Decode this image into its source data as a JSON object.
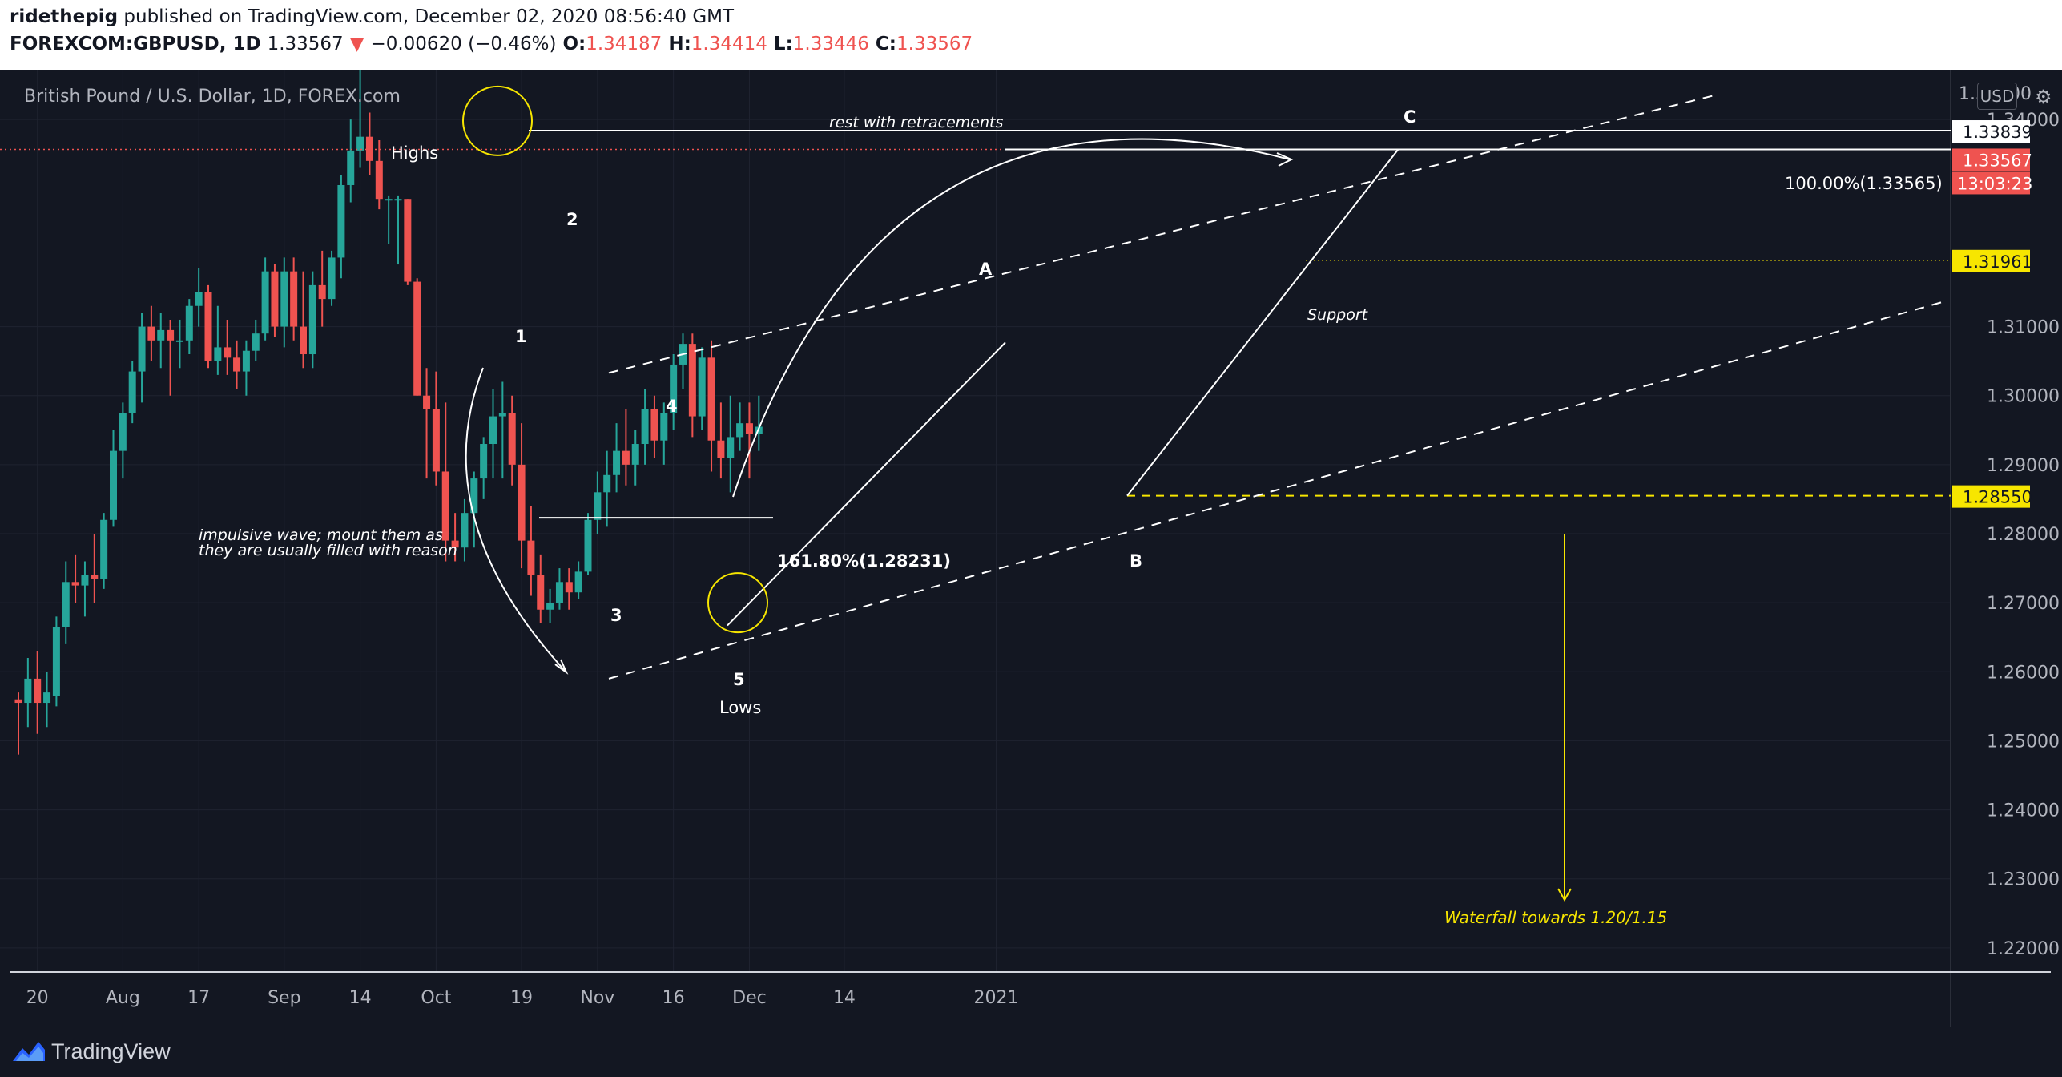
{
  "header": {
    "author": "ridethepig",
    "published_text": "published on TradingView.com, December 02, 2020 08:56:40 GMT",
    "symbol": "FOREXCOM:GBPUSD, 1D",
    "price": "1.33567",
    "change": "−0.00620 (−0.46%)",
    "o_label": "O:",
    "o_value": "1.34187",
    "h_label": "H:",
    "h_value": "1.34414",
    "l_label": "L:",
    "l_value": "1.33446",
    "c_label": "C:",
    "c_value": "1.33567"
  },
  "footer": {
    "brand": "TradingView"
  },
  "colors": {
    "up": "#26a69a",
    "down": "#ef5350",
    "background": "#131722",
    "accent_yellow": "#f7e600"
  },
  "chart_data": {
    "type": "candlestick",
    "title": "British Pound / U.S. Dollar, 1D, FOREX.com",
    "currency": "USD",
    "ylim": [
      1.2165,
      1.3435
    ],
    "y_ticks": [
      "1.22000",
      "1.23000",
      "1.24000",
      "1.25000",
      "1.26000",
      "1.27000",
      "1.28000",
      "1.29000",
      "1.30000",
      "1.31000",
      "1.34000"
    ],
    "x_ticks": [
      "20",
      "Aug",
      "17",
      "Sep",
      "14",
      "Oct",
      "19",
      "Nov",
      "16",
      "Dec",
      "14",
      "2021"
    ],
    "x_tick_index": [
      2,
      11,
      19,
      28,
      36,
      44,
      53,
      61,
      69,
      77,
      87,
      103
    ],
    "candles": [
      {
        "o": 1.256,
        "h": 1.257,
        "l": 1.248,
        "c": 1.2555
      },
      {
        "o": 1.2555,
        "h": 1.262,
        "l": 1.252,
        "c": 1.259
      },
      {
        "o": 1.259,
        "h": 1.263,
        "l": 1.251,
        "c": 1.2555
      },
      {
        "o": 1.2555,
        "h": 1.26,
        "l": 1.252,
        "c": 1.257
      },
      {
        "o": 1.2565,
        "h": 1.268,
        "l": 1.255,
        "c": 1.2665
      },
      {
        "o": 1.2665,
        "h": 1.276,
        "l": 1.264,
        "c": 1.273
      },
      {
        "o": 1.273,
        "h": 1.277,
        "l": 1.27,
        "c": 1.2725
      },
      {
        "o": 1.2725,
        "h": 1.276,
        "l": 1.268,
        "c": 1.274
      },
      {
        "o": 1.274,
        "h": 1.28,
        "l": 1.27,
        "c": 1.2735
      },
      {
        "o": 1.2735,
        "h": 1.283,
        "l": 1.272,
        "c": 1.282
      },
      {
        "o": 1.282,
        "h": 1.295,
        "l": 1.281,
        "c": 1.292
      },
      {
        "o": 1.292,
        "h": 1.299,
        "l": 1.288,
        "c": 1.2975
      },
      {
        "o": 1.2975,
        "h": 1.305,
        "l": 1.296,
        "c": 1.3035
      },
      {
        "o": 1.3035,
        "h": 1.312,
        "l": 1.299,
        "c": 1.31
      },
      {
        "o": 1.31,
        "h": 1.313,
        "l": 1.305,
        "c": 1.308
      },
      {
        "o": 1.308,
        "h": 1.312,
        "l": 1.304,
        "c": 1.3095
      },
      {
        "o": 1.3095,
        "h": 1.311,
        "l": 1.3,
        "c": 1.308
      },
      {
        "o": 1.308,
        "h": 1.311,
        "l": 1.304,
        "c": 1.308
      },
      {
        "o": 1.308,
        "h": 1.314,
        "l": 1.306,
        "c": 1.313
      },
      {
        "o": 1.313,
        "h": 1.3185,
        "l": 1.31,
        "c": 1.315
      },
      {
        "o": 1.315,
        "h": 1.316,
        "l": 1.304,
        "c": 1.305
      },
      {
        "o": 1.305,
        "h": 1.313,
        "l": 1.303,
        "c": 1.307
      },
      {
        "o": 1.307,
        "h": 1.311,
        "l": 1.303,
        "c": 1.3055
      },
      {
        "o": 1.3055,
        "h": 1.308,
        "l": 1.301,
        "c": 1.3035
      },
      {
        "o": 1.3035,
        "h": 1.308,
        "l": 1.3,
        "c": 1.3065
      },
      {
        "o": 1.3065,
        "h": 1.311,
        "l": 1.305,
        "c": 1.309
      },
      {
        "o": 1.309,
        "h": 1.32,
        "l": 1.308,
        "c": 1.318
      },
      {
        "o": 1.318,
        "h": 1.319,
        "l": 1.3085,
        "c": 1.31
      },
      {
        "o": 1.31,
        "h": 1.32,
        "l": 1.307,
        "c": 1.318
      },
      {
        "o": 1.318,
        "h": 1.32,
        "l": 1.308,
        "c": 1.31
      },
      {
        "o": 1.31,
        "h": 1.318,
        "l": 1.304,
        "c": 1.306
      },
      {
        "o": 1.306,
        "h": 1.318,
        "l": 1.304,
        "c": 1.316
      },
      {
        "o": 1.316,
        "h": 1.321,
        "l": 1.31,
        "c": 1.314
      },
      {
        "o": 1.314,
        "h": 1.321,
        "l": 1.313,
        "c": 1.32
      },
      {
        "o": 1.32,
        "h": 1.332,
        "l": 1.317,
        "c": 1.3305
      },
      {
        "o": 1.3305,
        "h": 1.34,
        "l": 1.328,
        "c": 1.3355
      },
      {
        "o": 1.3355,
        "h": 1.3485,
        "l": 1.333,
        "c": 1.3375
      },
      {
        "o": 1.3375,
        "h": 1.341,
        "l": 1.332,
        "c": 1.334
      },
      {
        "o": 1.334,
        "h": 1.337,
        "l": 1.327,
        "c": 1.3285
      },
      {
        "o": 1.3285,
        "h": 1.329,
        "l": 1.322,
        "c": 1.3285
      },
      {
        "o": 1.3285,
        "h": 1.329,
        "l": 1.319,
        "c": 1.3285
      },
      {
        "o": 1.3285,
        "h": 1.3285,
        "l": 1.316,
        "c": 1.3165
      },
      {
        "o": 1.3165,
        "h": 1.317,
        "l": 1.3,
        "c": 1.3
      },
      {
        "o": 1.3,
        "h": 1.304,
        "l": 1.288,
        "c": 1.298
      },
      {
        "o": 1.298,
        "h": 1.3035,
        "l": 1.287,
        "c": 1.289
      },
      {
        "o": 1.289,
        "h": 1.299,
        "l": 1.276,
        "c": 1.279
      },
      {
        "o": 1.279,
        "h": 1.283,
        "l": 1.276,
        "c": 1.278
      },
      {
        "o": 1.278,
        "h": 1.285,
        "l": 1.276,
        "c": 1.283
      },
      {
        "o": 1.283,
        "h": 1.289,
        "l": 1.278,
        "c": 1.288
      },
      {
        "o": 1.288,
        "h": 1.294,
        "l": 1.285,
        "c": 1.293
      },
      {
        "o": 1.293,
        "h": 1.301,
        "l": 1.288,
        "c": 1.297
      },
      {
        "o": 1.297,
        "h": 1.302,
        "l": 1.288,
        "c": 1.2975
      },
      {
        "o": 1.2975,
        "h": 1.3,
        "l": 1.287,
        "c": 1.29
      },
      {
        "o": 1.29,
        "h": 1.296,
        "l": 1.275,
        "c": 1.279
      },
      {
        "o": 1.279,
        "h": 1.284,
        "l": 1.271,
        "c": 1.274
      },
      {
        "o": 1.274,
        "h": 1.277,
        "l": 1.267,
        "c": 1.269
      },
      {
        "o": 1.269,
        "h": 1.272,
        "l": 1.267,
        "c": 1.27
      },
      {
        "o": 1.27,
        "h": 1.275,
        "l": 1.269,
        "c": 1.273
      },
      {
        "o": 1.273,
        "h": 1.275,
        "l": 1.269,
        "c": 1.2715
      },
      {
        "o": 1.2715,
        "h": 1.276,
        "l": 1.2705,
        "c": 1.2745
      },
      {
        "o": 1.2745,
        "h": 1.283,
        "l": 1.274,
        "c": 1.282
      },
      {
        "o": 1.282,
        "h": 1.289,
        "l": 1.28,
        "c": 1.286
      },
      {
        "o": 1.286,
        "h": 1.292,
        "l": 1.281,
        "c": 1.2885
      },
      {
        "o": 1.2885,
        "h": 1.296,
        "l": 1.286,
        "c": 1.292
      },
      {
        "o": 1.292,
        "h": 1.298,
        "l": 1.287,
        "c": 1.29
      },
      {
        "o": 1.29,
        "h": 1.295,
        "l": 1.287,
        "c": 1.293
      },
      {
        "o": 1.293,
        "h": 1.301,
        "l": 1.29,
        "c": 1.298
      },
      {
        "o": 1.298,
        "h": 1.3,
        "l": 1.291,
        "c": 1.2935
      },
      {
        "o": 1.2935,
        "h": 1.299,
        "l": 1.29,
        "c": 1.2975
      },
      {
        "o": 1.2975,
        "h": 1.306,
        "l": 1.295,
        "c": 1.3045
      },
      {
        "o": 1.3045,
        "h": 1.309,
        "l": 1.301,
        "c": 1.3075
      },
      {
        "o": 1.3075,
        "h": 1.309,
        "l": 1.294,
        "c": 1.297
      },
      {
        "o": 1.297,
        "h": 1.307,
        "l": 1.295,
        "c": 1.3055
      },
      {
        "o": 1.3055,
        "h": 1.308,
        "l": 1.289,
        "c": 1.2935
      },
      {
        "o": 1.2935,
        "h": 1.299,
        "l": 1.288,
        "c": 1.291
      },
      {
        "o": 1.291,
        "h": 1.3,
        "l": 1.286,
        "c": 1.294
      },
      {
        "o": 1.294,
        "h": 1.299,
        "l": 1.292,
        "c": 1.296
      },
      {
        "o": 1.296,
        "h": 1.299,
        "l": 1.288,
        "c": 1.2945
      },
      {
        "o": 1.2945,
        "h": 1.3,
        "l": 1.292,
        "c": 1.2955
      }
    ]
  },
  "price_labels": {
    "c_high": "1.33839",
    "last": "1.33567",
    "countdown": "13:03:23",
    "support": "1.31961",
    "b_level": "1.28550",
    "fib100": "100.00%(1.33565)",
    "fib161": "161.80%(1.28231)",
    "axis_top": "1.34000"
  },
  "annotations": {
    "highs": "Highs",
    "lows": "Lows",
    "w1": "1",
    "w2": "2",
    "w3": "3",
    "w4": "4",
    "w5": "5",
    "a": "A",
    "b": "B",
    "c": "C",
    "rest": "rest with retracements",
    "impulsive_1": "impulsive wave; mount them as",
    "impulsive_2": "they are usually filled with reason",
    "support": "Support",
    "waterfall": "Waterfall towards 1.20/1.15"
  }
}
